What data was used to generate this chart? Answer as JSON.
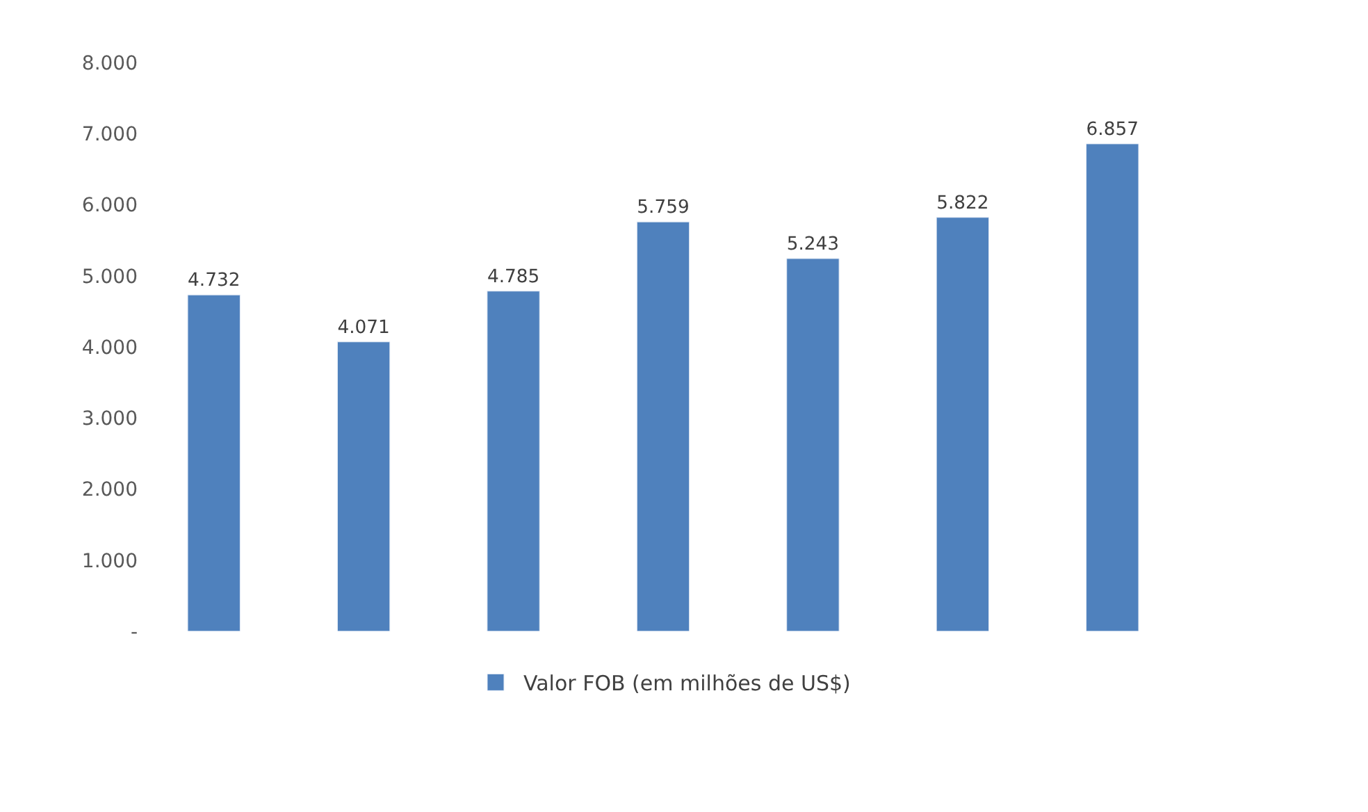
{
  "chart_data": {
    "type": "bar",
    "categories": [
      null,
      null,
      null,
      null,
      null,
      null,
      null
    ],
    "series": [
      {
        "name": "Valor FOB (em milhões de US$)",
        "color": "#4f81bd",
        "values": [
          4732,
          4071,
          4785,
          5759,
          5243,
          5822,
          6857
        ],
        "value_labels": [
          "4.732",
          "4.071",
          "4.785",
          "5.759",
          "5.243",
          "5.822",
          "6.857"
        ]
      }
    ],
    "ylim": [
      0,
      8000
    ],
    "yticks": [
      {
        "value": 0,
        "label": "-"
      },
      {
        "value": 1000,
        "label": "1.000"
      },
      {
        "value": 2000,
        "label": "2.000"
      },
      {
        "value": 3000,
        "label": "3.000"
      },
      {
        "value": 4000,
        "label": "4.000"
      },
      {
        "value": 5000,
        "label": "5.000"
      },
      {
        "value": 6000,
        "label": "6.000"
      },
      {
        "value": 7000,
        "label": "7.000"
      },
      {
        "value": 8000,
        "label": "8.000"
      }
    ],
    "legend": "bottom"
  }
}
